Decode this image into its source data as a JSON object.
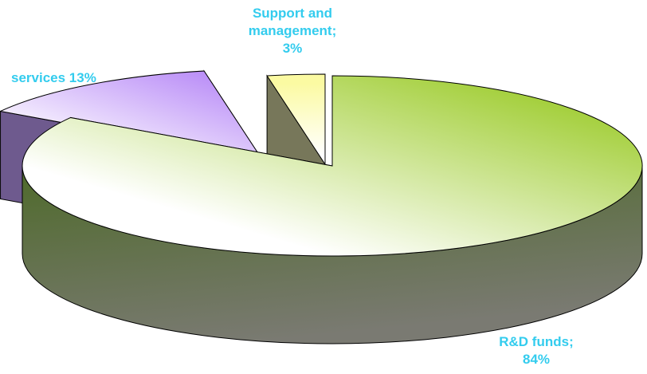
{
  "colors": {
    "label_text": "#33ccee",
    "rd_top_light": "#ffffff",
    "rd_top_dark": "#96c81e",
    "rd_side_dark": "#4e6a2a",
    "rd_side_light": "#7a7a72",
    "services_top_light": "#ffffff",
    "services_top_dark": "#b98cf7",
    "services_side": "#6e5a8e",
    "support_top_light": "#ffffff",
    "support_top_dark": "#fbfaa2",
    "support_side": "#77775a",
    "outline": "#000000"
  },
  "chart_data": {
    "type": "pie",
    "style": "3d-exploded",
    "title": "",
    "slices": [
      {
        "label": "R&D funds;\n84%",
        "value": 84,
        "display": "R&D funds;\n84%"
      },
      {
        "label": "services 13%",
        "value": 13,
        "display": "services 13%"
      },
      {
        "label": "Support and\nmanagement;\n3%",
        "value": 3,
        "display": "Support and\nmanagement;\n3%"
      }
    ],
    "legend": "none"
  }
}
